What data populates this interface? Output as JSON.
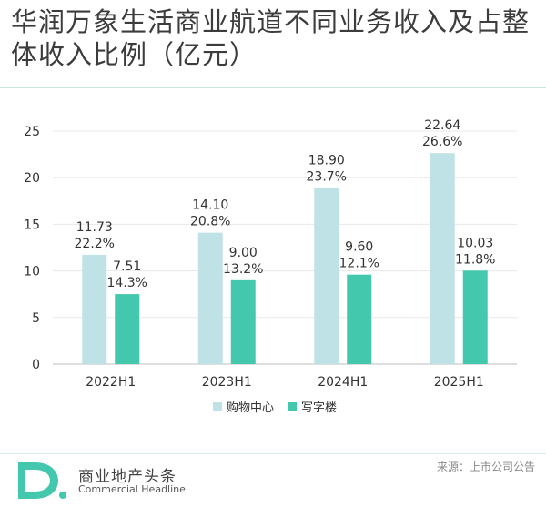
{
  "title": "华润万象生活商业航道不同业务收入及占整体收入比例（亿元）",
  "source": "来源：上市公司公告",
  "brand": {
    "name_cn": "商业地产头条",
    "name_en": "Commercial Headline",
    "logo_letter": "D."
  },
  "colors": {
    "shopping": "#bfe2e6",
    "office": "#43c7ad",
    "text": "#333333",
    "grid": "#e8e8e8"
  },
  "chart_data": {
    "type": "bar",
    "categories": [
      "2022H1",
      "2023H1",
      "2024H1",
      "2025H1"
    ],
    "ylim": [
      0,
      25
    ],
    "yticks": [
      0,
      5,
      10,
      15,
      20,
      25
    ],
    "grid": true,
    "legend_position": "bottom",
    "series": [
      {
        "name": "购物中心",
        "values": [
          11.73,
          14.1,
          18.9,
          22.64
        ],
        "labels": [
          "11.73",
          "14.10",
          "18.90",
          "22.64"
        ],
        "shares": [
          "22.2%",
          "20.8%",
          "23.7%",
          "26.6%"
        ]
      },
      {
        "name": "写字楼",
        "values": [
          7.51,
          9.0,
          9.6,
          10.03
        ],
        "labels": [
          "7.51",
          "9.00",
          "9.60",
          "10.03"
        ],
        "shares": [
          "14.3%",
          "13.2%",
          "12.1%",
          "11.8%"
        ]
      }
    ]
  }
}
